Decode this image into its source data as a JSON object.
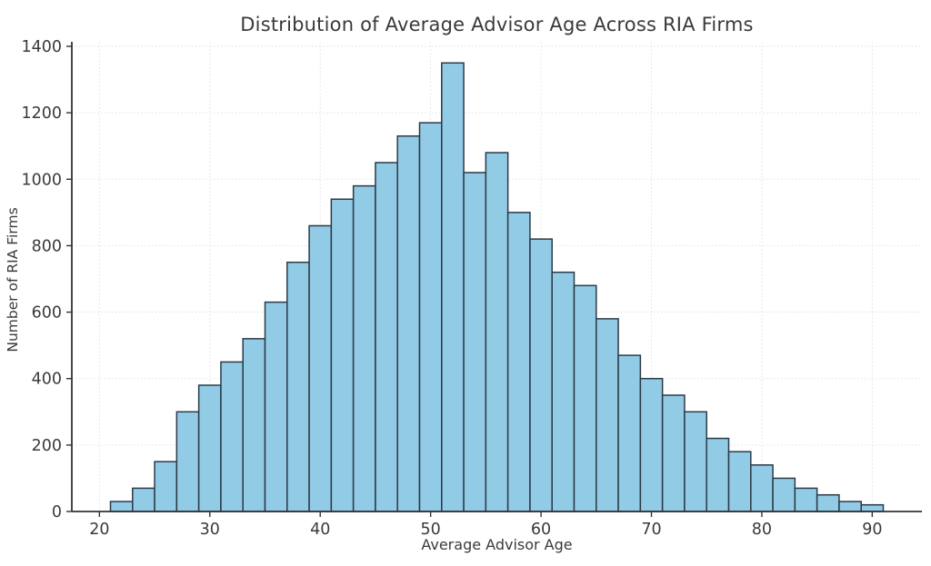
{
  "chart_data": {
    "type": "bar",
    "subtype": "histogram",
    "title": "Distribution of Average Advisor Age Across RIA Firms",
    "xlabel": "Average Advisor Age",
    "ylabel": "Number of RIA Firms",
    "bin_start": 21,
    "bin_width": 2,
    "counts": [
      30,
      70,
      150,
      300,
      380,
      450,
      520,
      630,
      750,
      860,
      940,
      980,
      1050,
      1130,
      1170,
      1350,
      1020,
      1080,
      900,
      820,
      720,
      680,
      580,
      470,
      400,
      350,
      300,
      220,
      180,
      140,
      100,
      70,
      50,
      30,
      20
    ],
    "xticks": [
      20,
      30,
      40,
      50,
      60,
      70,
      80,
      90
    ],
    "yticks": [
      0,
      200,
      400,
      600,
      800,
      1000,
      1200,
      1400
    ],
    "xlim": [
      17.5,
      94.5
    ],
    "ylim": [
      0,
      1400
    ],
    "grid": true,
    "grid_style": "dotted",
    "legend": "none",
    "colors": {
      "bar_fill": "#92cbe6",
      "bar_edge": "#2b3a46",
      "grid": "#e0e0e0",
      "axis": "#333333",
      "text": "#3a3a3a",
      "background": "#ffffff"
    }
  }
}
